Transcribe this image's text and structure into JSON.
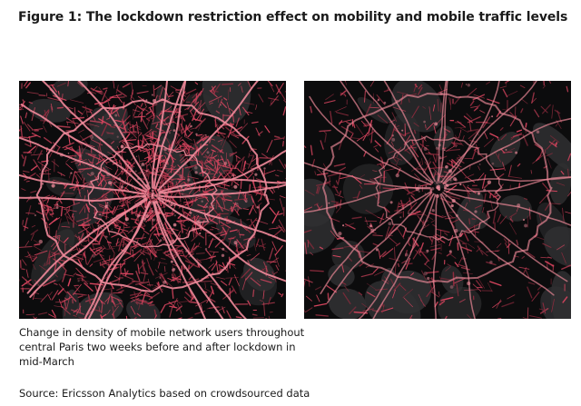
{
  "figure": {
    "title": "Figure 1: The lockdown restriction effect on mobility and mobile traffic levels"
  },
  "maps": {
    "before": {
      "density": 1.0
    },
    "after": {
      "density": 0.45
    }
  },
  "caption": "Change in density of mobile network users throughout central Paris two weeks before and after lockdown in mid-March",
  "source": "Source: Ericsson Analytics based on crowdsourced data",
  "colors": {
    "background": "#0c0c0d",
    "land": "#2f2f31",
    "road": "#d9455f",
    "road_dim": "#8e2b3d",
    "road_glow": "#f08a9a"
  }
}
